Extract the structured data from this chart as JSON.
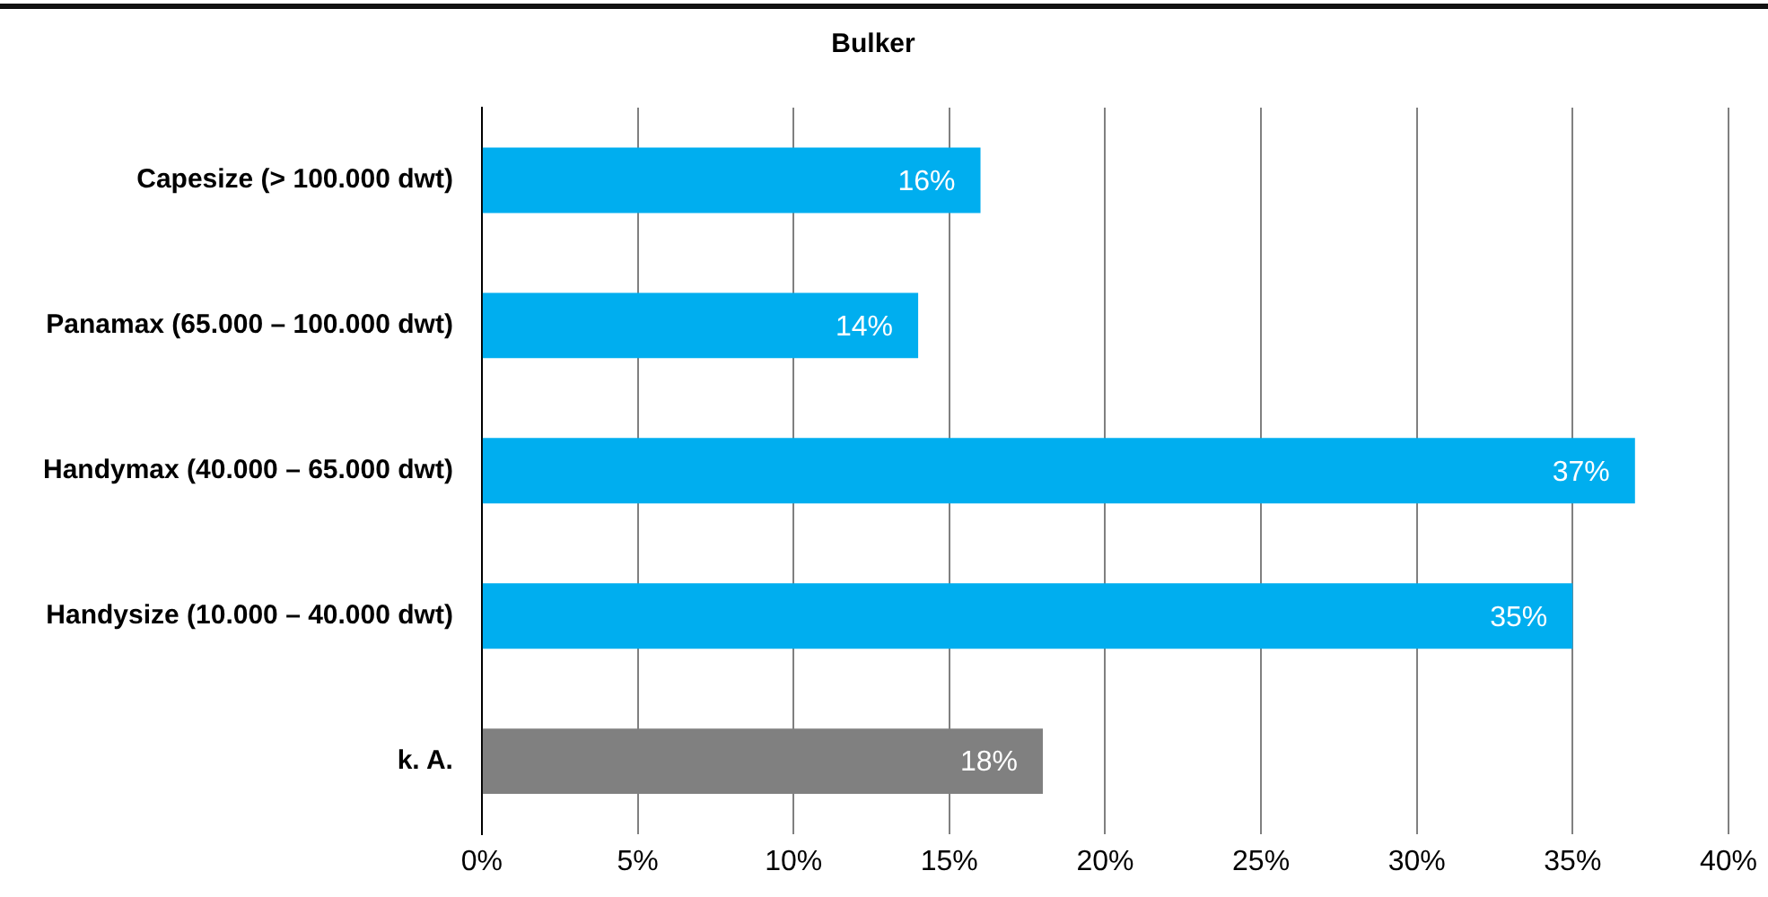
{
  "chart_data": {
    "type": "bar",
    "orientation": "horizontal",
    "title": "Bulker",
    "categories": [
      "Capesize (> 100.000 dwt)",
      "Panamax (65.000 – 100.000 dwt)",
      "Handymax (40.000 – 65.000 dwt)",
      "Handysize (10.000 – 40.000 dwt)",
      "k. A."
    ],
    "values": [
      16,
      14,
      37,
      35,
      18
    ],
    "colors": [
      "#00aeef",
      "#00aeef",
      "#00aeef",
      "#00aeef",
      "#808080"
    ],
    "value_labels": [
      "16%",
      "14%",
      "37%",
      "35%",
      "18%"
    ],
    "xlim": [
      0,
      40
    ],
    "xticks": [
      {
        "value": 0,
        "label": "0%"
      },
      {
        "value": 5,
        "label": "5%"
      },
      {
        "value": 10,
        "label": "10%"
      },
      {
        "value": 15,
        "label": "15%"
      },
      {
        "value": 20,
        "label": "20%"
      },
      {
        "value": 25,
        "label": "25%"
      },
      {
        "value": 30,
        "label": "30%"
      },
      {
        "value": 35,
        "label": "35%"
      },
      {
        "value": 40,
        "label": "40%"
      }
    ],
    "grid": "x",
    "legend": false
  }
}
